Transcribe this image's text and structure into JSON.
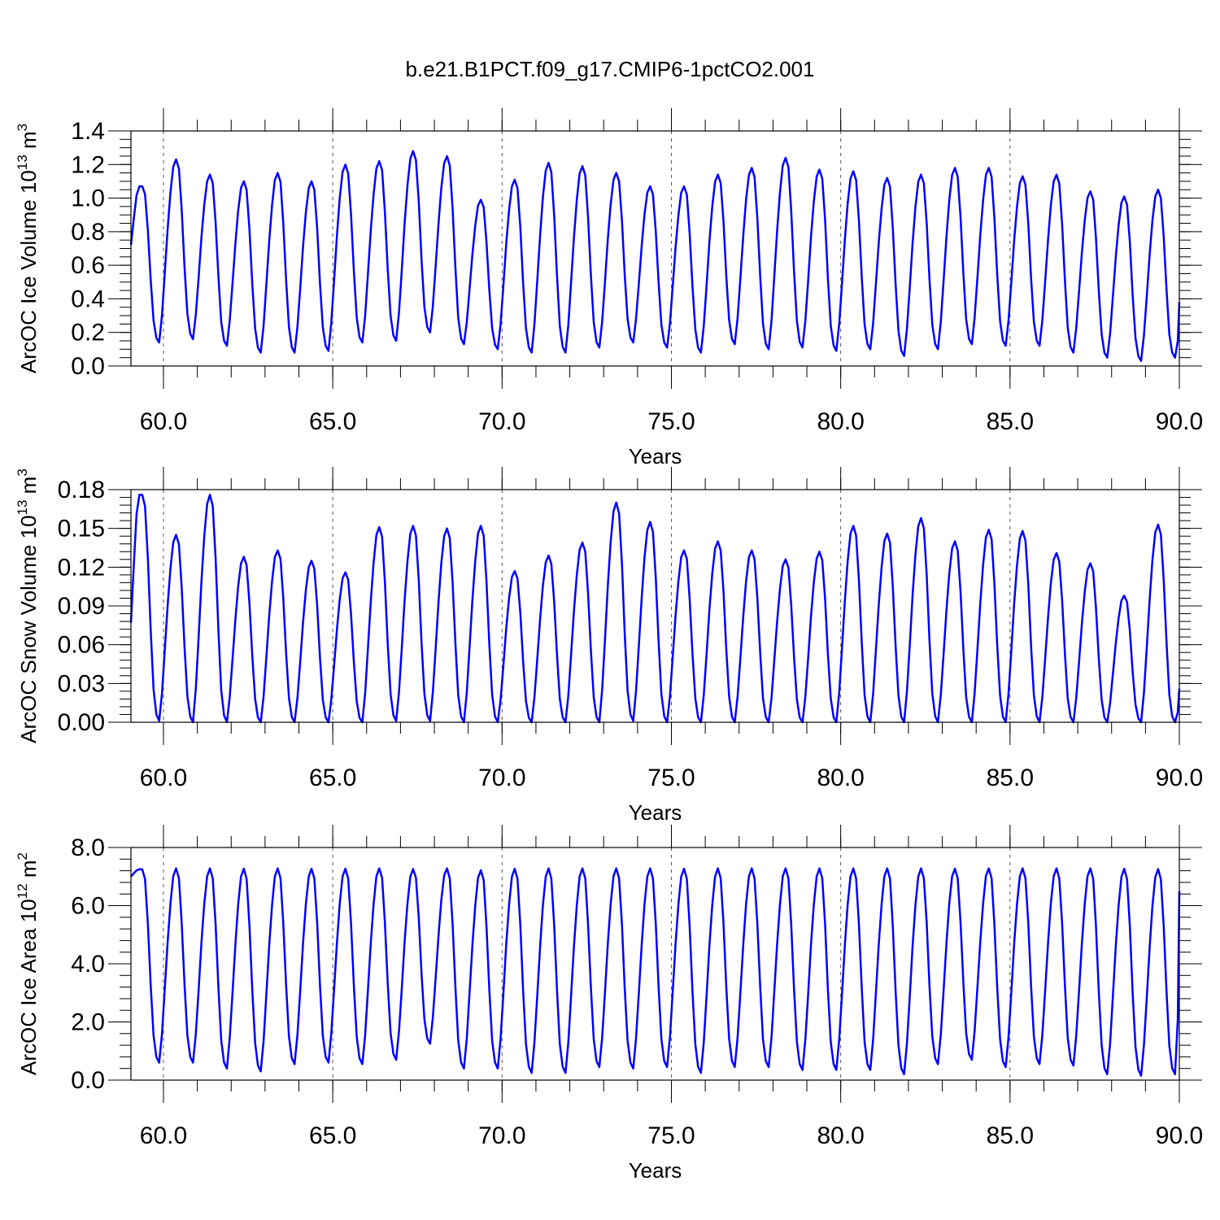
{
  "title": "b.e21.B1PCT.f09_g17.CMIP6-1pctCO2.001",
  "chart_data": [
    {
      "type": "line",
      "ylabel": "ArcOC Ice Volume 10",
      "ylabel_sup": "13",
      "ylabel_unit": " m",
      "ylabel_unit_sup": "3",
      "xlabel": "Years",
      "xlim": [
        59.04,
        90.0
      ],
      "ylim": [
        0.0,
        1.4
      ],
      "xticks": [
        60,
        65,
        70,
        75,
        80,
        85,
        90
      ],
      "xtick_labels": [
        "60.0",
        "65.0",
        "70.0",
        "75.0",
        "80.0",
        "85.0",
        "90.0"
      ],
      "yticks": [
        0.0,
        0.2,
        0.4,
        0.6,
        0.8,
        1.0,
        1.2,
        1.4
      ],
      "ytick_labels": [
        "0.0",
        "0.2",
        "0.4",
        "0.6",
        "0.8",
        "1.0",
        "1.2",
        "1.4"
      ],
      "y_minor_step": 0.05,
      "vlines": [
        60,
        65,
        70,
        75,
        80,
        85
      ],
      "color": "#0000ff",
      "start_year": 59.04,
      "month_step": 0.08333,
      "start_value": 0.72,
      "peaks": [
        1.07,
        1.23,
        1.14,
        1.1,
        1.15,
        1.1,
        1.2,
        1.22,
        1.28,
        1.25,
        0.99,
        1.11,
        1.21,
        1.19,
        1.15,
        1.07,
        1.07,
        1.14,
        1.18,
        1.24,
        1.17,
        1.16,
        1.12,
        1.14,
        1.18,
        1.18,
        1.13,
        1.14,
        1.04,
        1.01,
        1.05
      ],
      "minima": [
        0.14,
        0.16,
        0.12,
        0.08,
        0.08,
        0.09,
        0.14,
        0.15,
        0.2,
        0.13,
        0.1,
        0.08,
        0.08,
        0.11,
        0.14,
        0.11,
        0.08,
        0.13,
        0.1,
        0.11,
        0.09,
        0.1,
        0.06,
        0.1,
        0.13,
        0.12,
        0.12,
        0.08,
        0.05,
        0.03,
        0.05
      ],
      "end_value": 0.38
    },
    {
      "type": "line",
      "ylabel": "ArcOC Snow Volume 10",
      "ylabel_sup": "13",
      "ylabel_unit": " m",
      "ylabel_unit_sup": "3",
      "xlabel": "Years",
      "xlim": [
        59.04,
        90.0
      ],
      "ylim": [
        0.0,
        0.18
      ],
      "xticks": [
        60,
        65,
        70,
        75,
        80,
        85,
        90
      ],
      "xtick_labels": [
        "60.0",
        "65.0",
        "70.0",
        "75.0",
        "80.0",
        "85.0",
        "90.0"
      ],
      "yticks": [
        0.0,
        0.03,
        0.06,
        0.09,
        0.12,
        0.15,
        0.18
      ],
      "ytick_labels": [
        "0.00",
        "0.03",
        "0.06",
        "0.09",
        "0.12",
        "0.15",
        "0.18"
      ],
      "y_minor_step": 0.006,
      "vlines": [
        60,
        65,
        70,
        75,
        80,
        85
      ],
      "color": "#0000ff",
      "start_year": 59.04,
      "month_step": 0.08333,
      "start_value": 0.077,
      "peaks": [
        0.176,
        0.145,
        0.176,
        0.128,
        0.133,
        0.125,
        0.116,
        0.151,
        0.152,
        0.15,
        0.152,
        0.117,
        0.129,
        0.139,
        0.17,
        0.155,
        0.133,
        0.14,
        0.133,
        0.126,
        0.132,
        0.152,
        0.146,
        0.158,
        0.14,
        0.149,
        0.148,
        0.131,
        0.123,
        0.098,
        0.153
      ],
      "minima": [
        0.001,
        0.0,
        0.0,
        0.0,
        0.0,
        0.0,
        0.0,
        0.001,
        0.001,
        0.0,
        0.0,
        0.0,
        0.0,
        0.0,
        0.001,
        0.0,
        0.0,
        0.0,
        0.0,
        0.0,
        0.0,
        0.0,
        0.0,
        0.0,
        0.0,
        0.0,
        0.0,
        0.0,
        0.0,
        0.0,
        0.0
      ],
      "end_value": 0.026
    },
    {
      "type": "line",
      "ylabel": "ArcOC Ice Area 10",
      "ylabel_sup": "12",
      "ylabel_unit": " m",
      "ylabel_unit_sup": "2",
      "xlabel": "Years",
      "xlim": [
        59.04,
        90.0
      ],
      "ylim": [
        0.0,
        8.0
      ],
      "xticks": [
        60,
        65,
        70,
        75,
        80,
        85,
        90
      ],
      "xtick_labels": [
        "60.0",
        "65.0",
        "70.0",
        "75.0",
        "80.0",
        "85.0",
        "90.0"
      ],
      "yticks": [
        0.0,
        2.0,
        4.0,
        6.0,
        8.0
      ],
      "ytick_labels": [
        "0.0",
        "2.0",
        "4.0",
        "6.0",
        "8.0"
      ],
      "y_minor_step": 0.4,
      "vlines": [
        60,
        65,
        70,
        75,
        80,
        85
      ],
      "color": "#0000ff",
      "start_year": 59.04,
      "month_step": 0.08333,
      "start_value": 7.0,
      "peaks": [
        7.25,
        7.28,
        7.28,
        7.27,
        7.28,
        7.27,
        7.27,
        7.28,
        7.26,
        7.28,
        7.22,
        7.27,
        7.28,
        7.28,
        7.28,
        7.28,
        7.27,
        7.28,
        7.28,
        7.28,
        7.28,
        7.28,
        7.28,
        7.28,
        7.27,
        7.28,
        7.28,
        7.28,
        7.28,
        7.27,
        7.26
      ],
      "minima": [
        0.6,
        0.6,
        0.4,
        0.3,
        0.55,
        0.6,
        0.55,
        0.7,
        1.25,
        0.4,
        0.4,
        0.25,
        0.25,
        0.45,
        0.4,
        0.45,
        0.25,
        0.45,
        0.45,
        0.35,
        0.35,
        0.35,
        0.2,
        0.55,
        0.7,
        0.45,
        0.55,
        0.5,
        0.2,
        0.15,
        0.2
      ],
      "end_value": 6.5
    }
  ]
}
